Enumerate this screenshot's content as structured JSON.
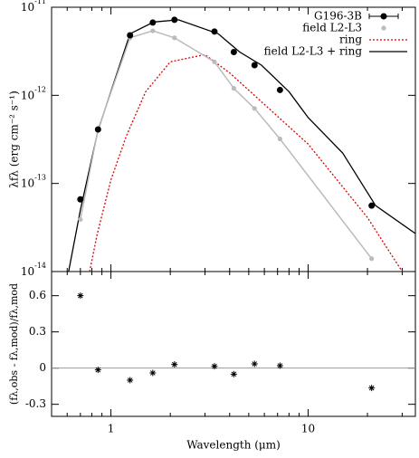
{
  "chart_data": [
    {
      "type": "line",
      "log_x": true,
      "log_y": true,
      "legend": "top-right",
      "xlim": [
        0.5,
        35
      ],
      "ylim": [
        1e-14,
        1e-11
      ],
      "yticks": [
        {
          "value": 1e-14,
          "label": "10^-14"
        },
        {
          "value": 1e-13,
          "label": "10^-13"
        },
        {
          "value": 1e-12,
          "label": "10^-12"
        },
        {
          "value": 1e-11,
          "label": "10^-11"
        }
      ],
      "ylabel": "λfλ (erg cm⁻² s⁻¹)",
      "series": [
        {
          "name": "G196-3B",
          "style": "points",
          "color": "#000000",
          "x": [
            0.7,
            0.86,
            1.25,
            1.63,
            2.1,
            3.35,
            4.2,
            5.35,
            7.2,
            21
          ],
          "values": [
            6.6e-14,
            4.1e-13,
            4.8e-12,
            6.7e-12,
            7.2e-12,
            5.3e-12,
            3.1e-12,
            2.2e-12,
            1.15e-12,
            5.6e-14
          ]
        },
        {
          "name": "field L2-L3",
          "style": "points-line",
          "color": "#bbbbbb",
          "x": [
            0.7,
            0.86,
            1.25,
            1.63,
            2.1,
            3.35,
            4.2,
            5.35,
            7.2,
            21
          ],
          "values": [
            3.9e-14,
            4.1e-13,
            4.5e-12,
            5.4e-12,
            4.5e-12,
            2.4e-12,
            1.2e-12,
            7.1e-13,
            3.2e-13,
            1.4e-14
          ]
        },
        {
          "name": "ring",
          "style": "dotted",
          "color": "#dd0000",
          "x": [
            0.78,
            0.85,
            1,
            1.2,
            1.5,
            2,
            3,
            4,
            6,
            10,
            20,
            30
          ],
          "values": [
            1e-14,
            2.6e-14,
            1.1e-13,
            3.5e-13,
            1.1e-12,
            2.4e-12,
            2.9e-12,
            1.8e-12,
            7.9e-13,
            2.8e-13,
            4.1e-14,
            1e-14
          ]
        },
        {
          "name": "field L2-L3 + ring",
          "style": "line",
          "color": "#000000",
          "x": [
            0.61,
            0.7,
            0.86,
            1.25,
            1.65,
            2.2,
            3.5,
            4.5,
            5.8,
            8,
            10,
            15,
            22,
            35
          ],
          "values": [
            1e-14,
            5e-14,
            4e-13,
            5e-12,
            6.8e-12,
            7.2e-12,
            5e-12,
            3.1e-12,
            2.2e-12,
            1.1e-12,
            5.6e-13,
            2.2e-13,
            5.6e-14,
            2.7e-14
          ]
        }
      ]
    },
    {
      "type": "scatter",
      "log_x": true,
      "xlim": [
        0.5,
        35
      ],
      "ylim": [
        -0.4,
        0.8
      ],
      "xticks": [
        1,
        10
      ],
      "xminorticks": [
        0.5,
        0.6,
        0.7,
        0.8,
        0.9,
        2,
        3,
        4,
        5,
        6,
        7,
        8,
        9,
        20,
        30
      ],
      "yticks": [
        -0.3,
        0,
        0.3,
        0.6
      ],
      "hline": 0,
      "xlabel": "Wavelength (μm)",
      "ylabel": "(fλ,obs - fλ,mod)/fλ,mod",
      "color": "#000000",
      "x": [
        0.7,
        0.86,
        1.25,
        1.63,
        2.1,
        3.35,
        4.2,
        5.35,
        7.2,
        21
      ],
      "values": [
        0.6,
        -0.015,
        -0.1,
        -0.04,
        0.03,
        0.015,
        -0.05,
        0.035,
        0.02,
        -0.165
      ]
    }
  ]
}
